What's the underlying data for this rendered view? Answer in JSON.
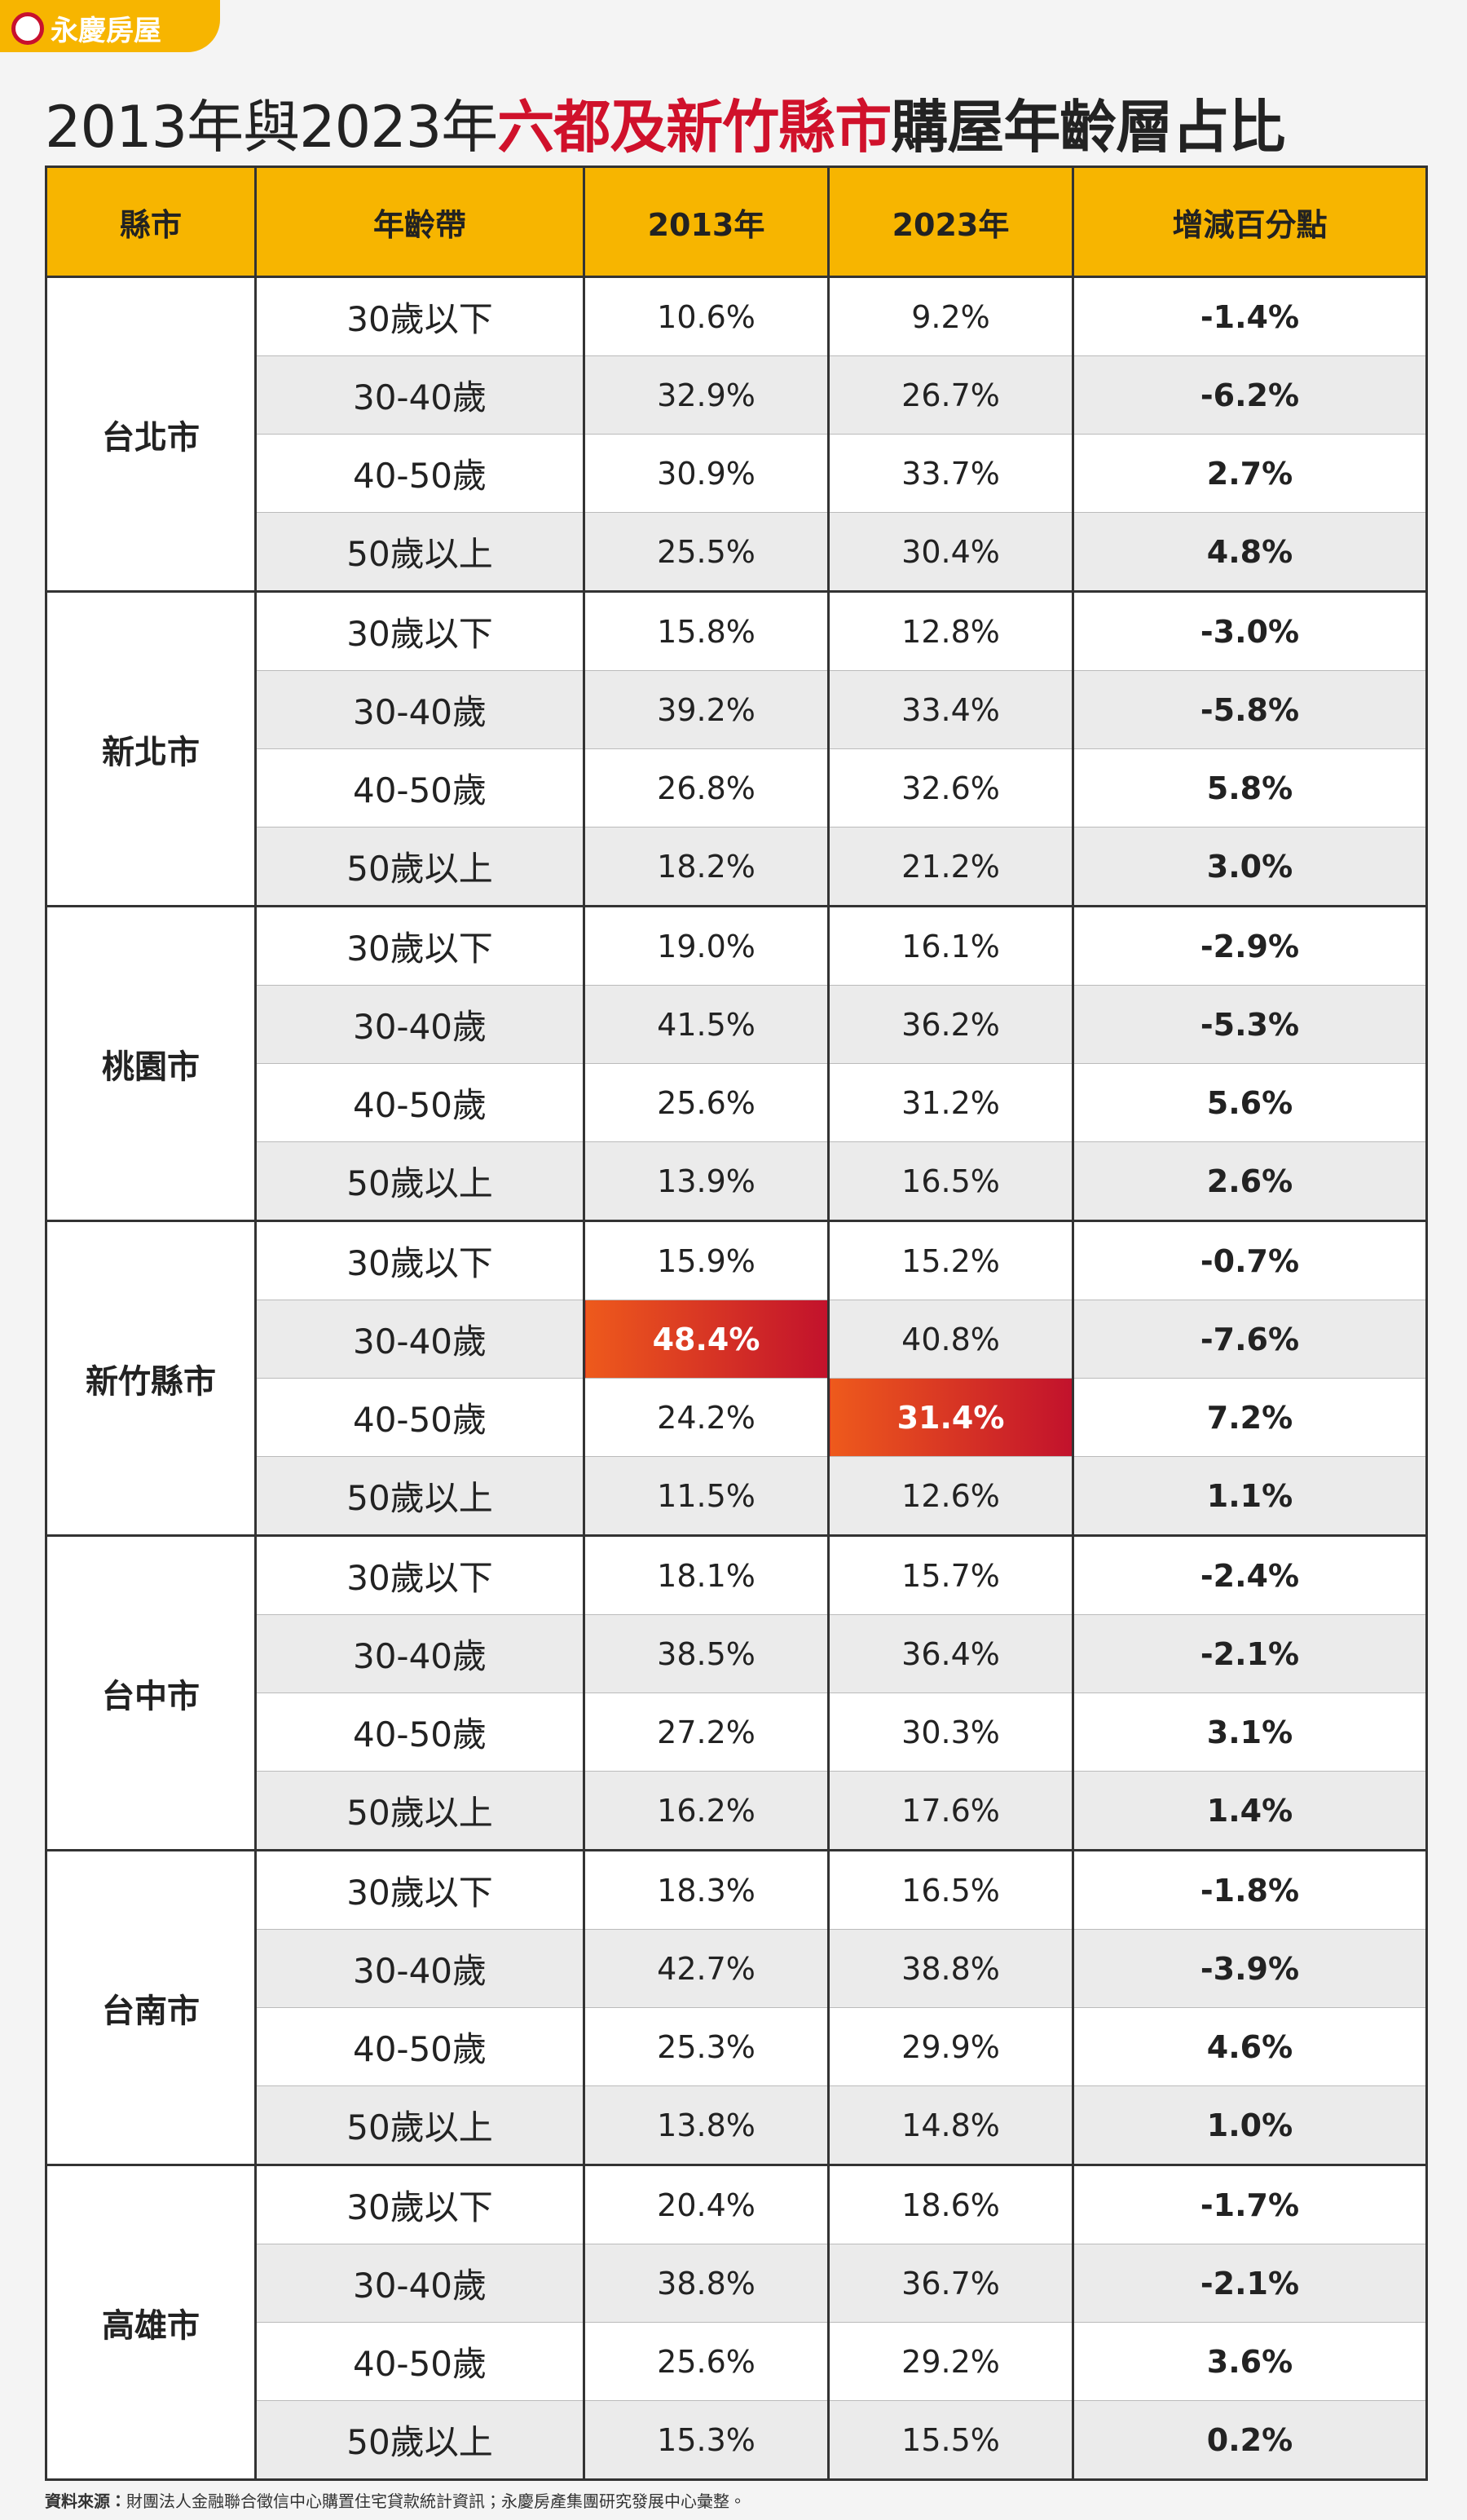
{
  "header": {
    "logo": "永慶房屋",
    "title": [
      "2013年與2023年",
      "六都及新竹縣市",
      "購屋年齡層占比"
    ]
  },
  "table": {
    "columns": [
      "縣市",
      "年齡帶",
      "2013年",
      "2023年",
      "增減百分點"
    ],
    "groups": [
      {
        "city": "台北市",
        "rows": [
          [
            "30歲以下",
            "10.6%",
            "9.2%",
            "-1.4%"
          ],
          [
            "30-40歲",
            "32.9%",
            "26.7%",
            "-6.2%"
          ],
          [
            "40-50歲",
            "30.9%",
            "33.7%",
            "2.7%"
          ],
          [
            "50歲以上",
            "25.5%",
            "30.4%",
            "4.8%"
          ]
        ]
      },
      {
        "city": "新北市",
        "rows": [
          [
            "30歲以下",
            "15.8%",
            "12.8%",
            "-3.0%"
          ],
          [
            "30-40歲",
            "39.2%",
            "33.4%",
            "-5.8%"
          ],
          [
            "40-50歲",
            "26.8%",
            "32.6%",
            "5.8%"
          ],
          [
            "50歲以上",
            "18.2%",
            "21.2%",
            "3.0%"
          ]
        ]
      },
      {
        "city": "桃園市",
        "rows": [
          [
            "30歲以下",
            "19.0%",
            "16.1%",
            "-2.9%"
          ],
          [
            "30-40歲",
            "41.5%",
            "36.2%",
            "-5.3%"
          ],
          [
            "40-50歲",
            "25.6%",
            "31.2%",
            "5.6%"
          ],
          [
            "50歲以上",
            "13.9%",
            "16.5%",
            "2.6%"
          ]
        ]
      },
      {
        "city": "新竹縣市",
        "rows": [
          [
            "30歲以下",
            "15.9%",
            "15.2%",
            "-0.7%"
          ],
          [
            "30-40歲",
            "48.4%",
            "40.8%",
            "-7.6%"
          ],
          [
            "40-50歲",
            "24.2%",
            "31.4%",
            "7.2%"
          ],
          [
            "50歲以上",
            "11.5%",
            "12.6%",
            "1.1%"
          ]
        ]
      },
      {
        "city": "台中市",
        "rows": [
          [
            "30歲以下",
            "18.1%",
            "15.7%",
            "-2.4%"
          ],
          [
            "30-40歲",
            "38.5%",
            "36.4%",
            "-2.1%"
          ],
          [
            "40-50歲",
            "27.2%",
            "30.3%",
            "3.1%"
          ],
          [
            "50歲以上",
            "16.2%",
            "17.6%",
            "1.4%"
          ]
        ]
      },
      {
        "city": "台南市",
        "rows": [
          [
            "30歲以下",
            "18.3%",
            "16.5%",
            "-1.8%"
          ],
          [
            "30-40歲",
            "42.7%",
            "38.8%",
            "-3.9%"
          ],
          [
            "40-50歲",
            "25.3%",
            "29.9%",
            "4.6%"
          ],
          [
            "50歲以上",
            "13.8%",
            "14.8%",
            "1.0%"
          ]
        ]
      },
      {
        "city": "高雄市",
        "rows": [
          [
            "30歲以下",
            "20.4%",
            "18.6%",
            "-1.7%"
          ],
          [
            "30-40歲",
            "38.8%",
            "36.7%",
            "-2.1%"
          ],
          [
            "40-50歲",
            "25.6%",
            "29.2%",
            "3.6%"
          ],
          [
            "50歲以上",
            "15.3%",
            "15.5%",
            "0.2%"
          ]
        ]
      }
    ]
  },
  "footer": {
    "label": "資料來源：",
    "text": "財團法人金融聯合徵信中心購置住宅貸款統計資訊；永慶房產集團研究發展中心彙整。"
  }
}
